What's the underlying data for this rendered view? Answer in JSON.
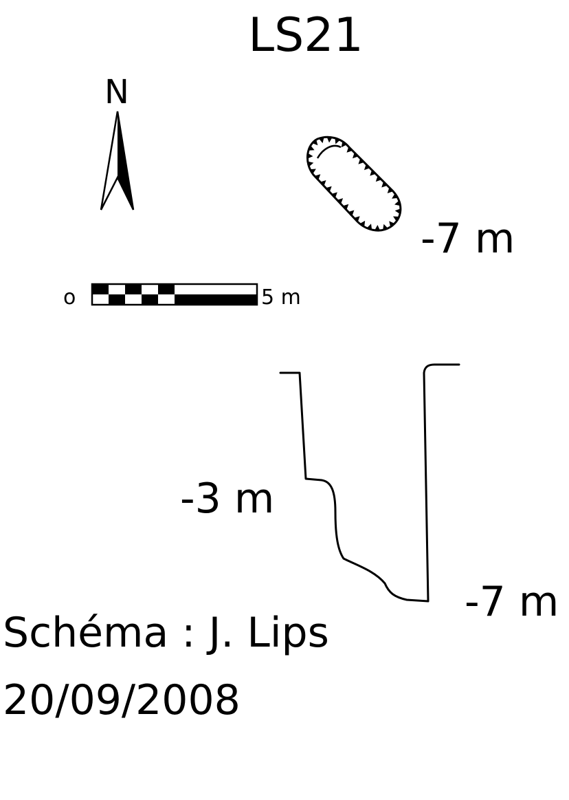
{
  "title": "LS21",
  "north_label": "N",
  "scale_bar": {
    "start_label": "o",
    "end_label": "5 m"
  },
  "plan_view": {
    "depth_label": "-7 m"
  },
  "section_view": {
    "ledge_depth_label": "-3 m",
    "bottom_depth_label": "-7 m"
  },
  "credit": {
    "author_line": "Schéma : J. Lips",
    "date_line": "20/09/2008"
  },
  "colors": {
    "ink": "#000000",
    "paper": "#ffffff"
  }
}
